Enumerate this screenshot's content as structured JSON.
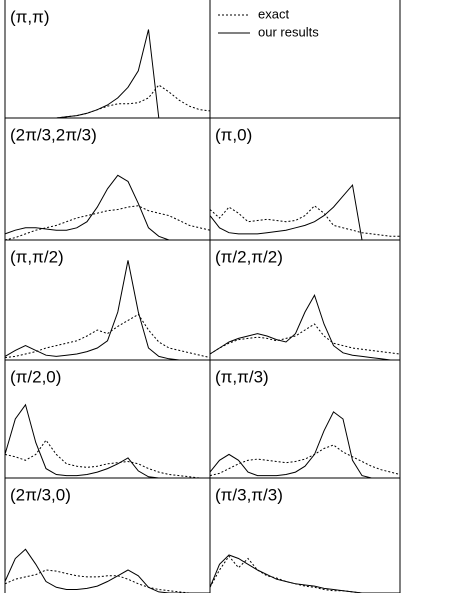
{
  "legend": [
    {
      "name": "exact",
      "dash": "dotted"
    },
    {
      "name": "our results",
      "dash": "solid"
    }
  ],
  "chart_data": [
    {
      "type": "line",
      "title": "(π,π)",
      "x": [
        0,
        1,
        2,
        3,
        4,
        5,
        6,
        7,
        8,
        9,
        10,
        11,
        12,
        13,
        14,
        15,
        16,
        17,
        18,
        19,
        20
      ],
      "xlim": [
        0,
        20
      ],
      "ylim": [
        0,
        1
      ],
      "series": [
        {
          "dash": "dotted",
          "values": [
            0,
            0,
            0,
            0,
            0,
            0,
            0.01,
            0.02,
            0.04,
            0.07,
            0.1,
            0.12,
            0.12,
            0.13,
            0.17,
            0.28,
            0.22,
            0.15,
            0.1,
            0.07,
            0.06
          ]
        },
        {
          "dash": "solid",
          "values": [
            0,
            0,
            0,
            0,
            0,
            0,
            0.01,
            0.02,
            0.04,
            0.07,
            0.11,
            0.17,
            0.26,
            0.4,
            0.75,
            0,
            0,
            0,
            0,
            0,
            0
          ]
        }
      ]
    },
    {
      "type": "line",
      "title": "(2π/3,2π/3)",
      "x": [
        0,
        1,
        2,
        3,
        4,
        5,
        6,
        7,
        8,
        9,
        10,
        11,
        12,
        13,
        14,
        15,
        16,
        17,
        18,
        19,
        20
      ],
      "xlim": [
        0,
        20
      ],
      "ylim": [
        0,
        1
      ],
      "series": [
        {
          "dash": "dotted",
          "values": [
            0,
            0.02,
            0.05,
            0.08,
            0.1,
            0.12,
            0.15,
            0.18,
            0.2,
            0.22,
            0.24,
            0.25,
            0.27,
            0.28,
            0.24,
            0.22,
            0.2,
            0.16,
            0.12,
            0.1,
            0.08
          ]
        },
        {
          "dash": "solid",
          "values": [
            0.05,
            0.08,
            0.1,
            0.1,
            0.09,
            0.08,
            0.08,
            0.1,
            0.15,
            0.27,
            0.42,
            0.53,
            0.48,
            0.3,
            0.1,
            0.03,
            0,
            0,
            0,
            0,
            0
          ]
        }
      ]
    },
    {
      "type": "line",
      "title": "(π,0)",
      "x": [
        0,
        1,
        2,
        3,
        4,
        5,
        6,
        7,
        8,
        9,
        10,
        11,
        12,
        13,
        14,
        15,
        16,
        17,
        18,
        19,
        20
      ],
      "xlim": [
        0,
        20
      ],
      "ylim": [
        0,
        1
      ],
      "series": [
        {
          "dash": "dotted",
          "values": [
            0.25,
            0.18,
            0.27,
            0.22,
            0.15,
            0.16,
            0.17,
            0.16,
            0.15,
            0.16,
            0.2,
            0.28,
            0.22,
            0.12,
            0.1,
            0.08,
            0.06,
            0.05,
            0.04,
            0.03,
            0.03
          ]
        },
        {
          "dash": "solid",
          "values": [
            0.2,
            0.1,
            0.06,
            0.05,
            0.05,
            0.05,
            0.06,
            0.07,
            0.08,
            0.1,
            0.12,
            0.15,
            0.2,
            0.27,
            0.36,
            0.45,
            0,
            0,
            0,
            0,
            0
          ]
        }
      ]
    },
    {
      "type": "line",
      "title": "(π,π/2)",
      "x": [
        0,
        1,
        2,
        3,
        4,
        5,
        6,
        7,
        8,
        9,
        10,
        11,
        12,
        13,
        14,
        15,
        16,
        17,
        18,
        19,
        20
      ],
      "xlim": [
        0,
        20
      ],
      "ylim": [
        0,
        1
      ],
      "series": [
        {
          "dash": "dotted",
          "values": [
            0.02,
            0.03,
            0.05,
            0.07,
            0.1,
            0.12,
            0.14,
            0.16,
            0.2,
            0.25,
            0.22,
            0.28,
            0.33,
            0.38,
            0.25,
            0.15,
            0.1,
            0.08,
            0.06,
            0.04,
            0.02
          ]
        },
        {
          "dash": "solid",
          "values": [
            0.03,
            0.08,
            0.12,
            0.08,
            0.04,
            0.03,
            0.04,
            0.05,
            0.07,
            0.1,
            0.16,
            0.4,
            0.83,
            0.4,
            0.1,
            0.03,
            0.01,
            0,
            0,
            0,
            0
          ]
        }
      ]
    },
    {
      "type": "line",
      "title": "(π/2,π/2)",
      "x": [
        0,
        1,
        2,
        3,
        4,
        5,
        6,
        7,
        8,
        9,
        10,
        11,
        12,
        13,
        14,
        15,
        16,
        17,
        18,
        19,
        20
      ],
      "xlim": [
        0,
        20
      ],
      "ylim": [
        0,
        1
      ],
      "series": [
        {
          "dash": "dotted",
          "values": [
            0.05,
            0.1,
            0.14,
            0.17,
            0.18,
            0.19,
            0.18,
            0.16,
            0.18,
            0.2,
            0.25,
            0.3,
            0.2,
            0.14,
            0.12,
            0.1,
            0.09,
            0.08,
            0.07,
            0.06,
            0.05
          ]
        },
        {
          "dash": "solid",
          "values": [
            0.05,
            0.1,
            0.15,
            0.18,
            0.2,
            0.22,
            0.2,
            0.17,
            0.15,
            0.22,
            0.4,
            0.54,
            0.3,
            0.12,
            0.06,
            0.04,
            0.03,
            0.02,
            0.01,
            0,
            0
          ]
        }
      ]
    },
    {
      "type": "line",
      "title": "(π/2,0)",
      "x": [
        0,
        1,
        2,
        3,
        4,
        5,
        6,
        7,
        8,
        9,
        10,
        11,
        12,
        13,
        14,
        15,
        16,
        17,
        18,
        19,
        20
      ],
      "xlim": [
        0,
        20
      ],
      "ylim": [
        0,
        1
      ],
      "series": [
        {
          "dash": "dotted",
          "values": [
            0.2,
            0.18,
            0.15,
            0.2,
            0.32,
            0.2,
            0.12,
            0.1,
            0.09,
            0.1,
            0.12,
            0.13,
            0.14,
            0.12,
            0.08,
            0.05,
            0.03,
            0.02,
            0.01,
            0,
            0
          ]
        },
        {
          "dash": "solid",
          "values": [
            0.2,
            0.5,
            0.62,
            0.3,
            0.08,
            0.03,
            0.02,
            0.02,
            0.03,
            0.05,
            0.08,
            0.12,
            0.17,
            0.06,
            0.01,
            0,
            0,
            0,
            0,
            0,
            0
          ]
        }
      ]
    },
    {
      "type": "line",
      "title": "(π,π/3)",
      "x": [
        0,
        1,
        2,
        3,
        4,
        5,
        6,
        7,
        8,
        9,
        10,
        11,
        12,
        13,
        14,
        15,
        16,
        17,
        18,
        19,
        20
      ],
      "xlim": [
        0,
        20
      ],
      "ylim": [
        0,
        1
      ],
      "series": [
        {
          "dash": "dotted",
          "values": [
            0.02,
            0.04,
            0.08,
            0.12,
            0.15,
            0.16,
            0.15,
            0.14,
            0.13,
            0.14,
            0.16,
            0.2,
            0.25,
            0.28,
            0.22,
            0.18,
            0.14,
            0.1,
            0.07,
            0.05,
            0.03
          ]
        },
        {
          "dash": "solid",
          "values": [
            0.05,
            0.15,
            0.2,
            0.15,
            0.05,
            0.02,
            0.02,
            0.02,
            0.03,
            0.05,
            0.1,
            0.2,
            0.4,
            0.56,
            0.5,
            0.15,
            0.02,
            0,
            0,
            0,
            0
          ]
        }
      ]
    },
    {
      "type": "line",
      "title": "(2π/3,0)",
      "x": [
        0,
        1,
        2,
        3,
        4,
        5,
        6,
        7,
        8,
        9,
        10,
        11,
        12,
        13,
        14,
        15,
        16,
        17,
        18,
        19,
        20
      ],
      "xlim": [
        0,
        20
      ],
      "ylim": [
        0,
        1
      ],
      "series": [
        {
          "dash": "dotted",
          "values": [
            0.08,
            0.12,
            0.14,
            0.16,
            0.2,
            0.19,
            0.17,
            0.15,
            0.14,
            0.14,
            0.15,
            0.15,
            0.12,
            0.08,
            0.05,
            0.03,
            0.02,
            0.01,
            0,
            0,
            0
          ]
        },
        {
          "dash": "solid",
          "values": [
            0.1,
            0.3,
            0.38,
            0.25,
            0.1,
            0.05,
            0.03,
            0.03,
            0.04,
            0.06,
            0.1,
            0.15,
            0.2,
            0.15,
            0.05,
            0.01,
            0,
            0,
            0,
            0,
            0
          ]
        }
      ]
    },
    {
      "type": "line",
      "title": "(π/3,π/3)",
      "x": [
        0,
        1,
        2,
        3,
        4,
        5,
        6,
        7,
        8,
        9,
        10,
        11,
        12,
        13,
        14,
        15,
        16,
        17,
        18,
        19,
        20
      ],
      "xlim": [
        0,
        20
      ],
      "ylim": [
        0,
        1
      ],
      "series": [
        {
          "dash": "dotted",
          "values": [
            0.05,
            0.2,
            0.32,
            0.22,
            0.3,
            0.2,
            0.15,
            0.13,
            0.1,
            0.08,
            0.06,
            0.05,
            0.03,
            0.02,
            0.02,
            0.01,
            0,
            0,
            0,
            0,
            0
          ]
        },
        {
          "dash": "solid",
          "values": [
            0.05,
            0.25,
            0.33,
            0.3,
            0.25,
            0.2,
            0.16,
            0.12,
            0.1,
            0.08,
            0.07,
            0.06,
            0.04,
            0.03,
            0.02,
            0.01,
            0,
            0,
            0,
            0,
            0
          ]
        }
      ]
    }
  ]
}
